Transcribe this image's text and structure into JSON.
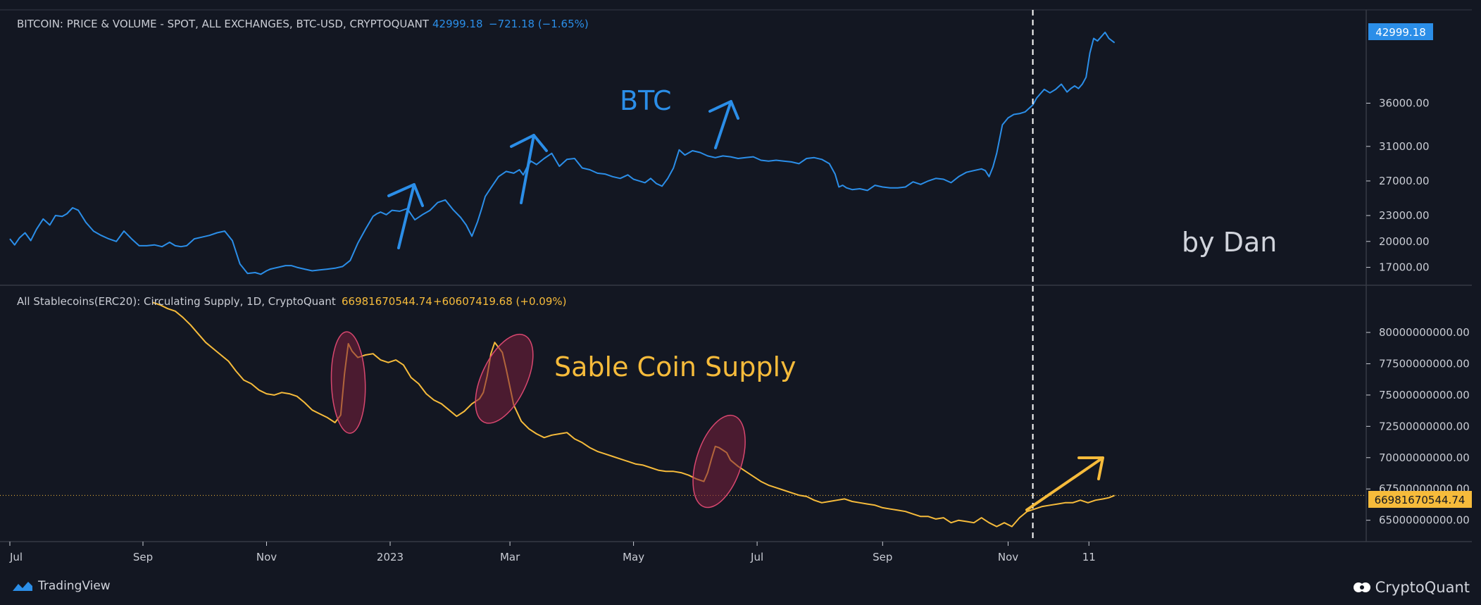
{
  "colors": {
    "background": "#131722",
    "btc": "#2b8ee8",
    "stable": "#f6bb3b",
    "highlight_fill": "#7a1f3d",
    "highlight_stroke": "#d8476f",
    "axis_text": "#c9ccd4",
    "header_text": "#c9ccd4",
    "divider": "#363a45"
  },
  "top_pane": {
    "header": {
      "title": "BITCOIN: PRICE & VOLUME - SPOT, ALL EXCHANGES, BTC-USD, CRYPTOQUANT",
      "value": "42999.18",
      "change": "−721.18 (−1.65%)"
    },
    "price_label": "42999.18",
    "annotation": "BTC",
    "watermark": "by Dan"
  },
  "bottom_pane": {
    "header": {
      "title": "All Stablecoins(ERC20): Circulating Supply, 1D, CryptoQuant",
      "value": "66981670544.74",
      "change": "+60607419.68 (+0.09%)"
    },
    "price_label": "66981670544.74",
    "annotation": "Sable Coin Supply"
  },
  "footer": {
    "left_logo": "TradingView",
    "right_logo": "CryptoQuant"
  },
  "chart_data": [
    {
      "type": "line",
      "series": [
        {
          "name": "BTC",
          "x": [
            0,
            5,
            10,
            16,
            22,
            28,
            35,
            42,
            48,
            55,
            60,
            66,
            72,
            80,
            88,
            96,
            104,
            112,
            120,
            128,
            136,
            144,
            152,
            160,
            168,
            174,
            180,
            186,
            194,
            202,
            210,
            218,
            226,
            234,
            242,
            250,
            258,
            264,
            270,
            274,
            278,
            282,
            286,
            290,
            296,
            302,
            310,
            318,
            326,
            334,
            342,
            350,
            358,
            366,
            374,
            382,
            386,
            390,
            396,
            402,
            410,
            418,
            426,
            434,
            442,
            450,
            458,
            466,
            474,
            480,
            486,
            492,
            496,
            500,
            506,
            514,
            522,
            530,
            536,
            540,
            544,
            548,
            554,
            562,
            570,
            578,
            586,
            594,
            602,
            610,
            618,
            626,
            634,
            642,
            650,
            656,
            662,
            668,
            674,
            680,
            686,
            692,
            698,
            704,
            710,
            718,
            726,
            734,
            742,
            750,
            758,
            766,
            774,
            782,
            790,
            798,
            806,
            814,
            822,
            830,
            838,
            846,
            854,
            862,
            868,
            872,
            876,
            880,
            886,
            894,
            902,
            910,
            918,
            926,
            934,
            942,
            950,
            958,
            966,
            974,
            982,
            990,
            998,
            1006,
            1014,
            1022,
            1026,
            1030,
            1034,
            1038,
            1044,
            1050,
            1056,
            1062,
            1068,
            1072,
            1076,
            1080,
            1084,
            1088,
            1094,
            1100,
            1106,
            1112,
            1116,
            1120,
            1124,
            1128,
            1132,
            1136,
            1140,
            1144,
            1148,
            1152,
            1156,
            1162
          ],
          "values": [
            20300,
            19600,
            20400,
            21000,
            20100,
            21400,
            22600,
            21900,
            23000,
            22900,
            23200,
            23900,
            23600,
            22200,
            21200,
            20700,
            20300,
            20000,
            21200,
            20300,
            19500,
            19500,
            19600,
            19400,
            19900,
            19500,
            19400,
            19500,
            20300,
            20500,
            20700,
            21000,
            21200,
            20100,
            17400,
            16300,
            16400,
            16200,
            16600,
            16800,
            16900,
            17000,
            17100,
            17200,
            17200,
            17000,
            16800,
            16600,
            16700,
            16800,
            16900,
            17100,
            17800,
            19800,
            21400,
            22900,
            23200,
            23400,
            23100,
            23600,
            23500,
            23800,
            22500,
            23100,
            23600,
            24500,
            24800,
            23700,
            22800,
            21900,
            20600,
            22300,
            23700,
            25200,
            26200,
            27500,
            28100,
            27900,
            28300,
            27700,
            28600,
            29300,
            28900,
            29600,
            30200,
            28700,
            29500,
            29600,
            28500,
            28300,
            27900,
            27800,
            27500,
            27300,
            27700,
            27200,
            27000,
            26800,
            27300,
            26700,
            26400,
            27300,
            28500,
            30600,
            30000,
            30500,
            30300,
            29900,
            29700,
            29900,
            29800,
            29600,
            29700,
            29800,
            29400,
            29300,
            29400,
            29300,
            29200,
            29000,
            29600,
            29700,
            29500,
            29000,
            27800,
            26300,
            26500,
            26200,
            26000,
            26100,
            25900,
            26500,
            26300,
            26200,
            26200,
            26300,
            26900,
            26600,
            27000,
            27300,
            27200,
            26800,
            27500,
            28000,
            28200,
            28400,
            28200,
            27500,
            28600,
            30200,
            33500,
            34300,
            34700,
            34800,
            35000,
            35400,
            35800,
            36600,
            37100,
            37600,
            37200,
            37600,
            38200,
            37300,
            37700,
            38000,
            37700,
            38200,
            39000,
            41800,
            43500,
            43200,
            43700,
            44200,
            43500,
            42999
          ]
        }
      ],
      "ylim": [
        15500,
        45500
      ],
      "yticks": [
        "17000.00",
        "20000.00",
        "23000.00",
        "27000.00",
        "31000.00",
        "36000.00"
      ]
    },
    {
      "type": "line",
      "series": [
        {
          "name": "All Stablecoins(ERC20): Circulating Supply",
          "x": [
            150,
            158,
            166,
            174,
            182,
            190,
            198,
            206,
            214,
            222,
            230,
            238,
            246,
            254,
            262,
            270,
            278,
            286,
            294,
            302,
            310,
            318,
            326,
            334,
            342,
            348,
            352,
            356,
            360,
            366,
            374,
            382,
            390,
            398,
            406,
            414,
            422,
            430,
            438,
            446,
            454,
            462,
            470,
            478,
            486,
            490,
            494,
            498,
            502,
            506,
            510,
            514,
            518,
            522,
            530,
            538,
            546,
            554,
            562,
            570,
            578,
            586,
            594,
            602,
            610,
            618,
            626,
            634,
            642,
            650,
            658,
            666,
            674,
            682,
            690,
            698,
            706,
            714,
            722,
            730,
            734,
            738,
            742,
            746,
            750,
            754,
            758,
            766,
            774,
            782,
            790,
            798,
            806,
            814,
            822,
            830,
            838,
            846,
            854,
            862,
            870,
            878,
            886,
            894,
            902,
            910,
            918,
            926,
            934,
            942,
            950,
            958,
            966,
            974,
            982,
            990,
            998,
            1006,
            1014,
            1022,
            1030,
            1038,
            1046,
            1054,
            1062,
            1070,
            1078,
            1086,
            1094,
            1102,
            1110,
            1118,
            1126,
            1134,
            1142,
            1150,
            1156,
            1162
          ],
          "values": [
            82400000000,
            82200000000,
            81900000000,
            81700000000,
            81200000000,
            80600000000,
            79900000000,
            79200000000,
            78700000000,
            78200000000,
            77700000000,
            76900000000,
            76200000000,
            75900000000,
            75400000000,
            75100000000,
            75000000000,
            75200000000,
            75100000000,
            74900000000,
            74400000000,
            73800000000,
            73500000000,
            73200000000,
            72800000000,
            73400000000,
            76700000000,
            79100000000,
            78500000000,
            78000000000,
            78200000000,
            78300000000,
            77800000000,
            77600000000,
            77800000000,
            77400000000,
            76400000000,
            75900000000,
            75100000000,
            74600000000,
            74300000000,
            73800000000,
            73300000000,
            73700000000,
            74300000000,
            74500000000,
            74700000000,
            75200000000,
            76500000000,
            78300000000,
            79200000000,
            78800000000,
            78400000000,
            77100000000,
            74200000000,
            72900000000,
            72300000000,
            71900000000,
            71600000000,
            71800000000,
            71900000000,
            72000000000,
            71500000000,
            71200000000,
            70800000000,
            70500000000,
            70300000000,
            70100000000,
            69900000000,
            69700000000,
            69500000000,
            69400000000,
            69200000000,
            69000000000,
            68900000000,
            68900000000,
            68800000000,
            68600000000,
            68300000000,
            68100000000,
            68800000000,
            69900000000,
            70900000000,
            70800000000,
            70600000000,
            70400000000,
            69800000000,
            69300000000,
            68900000000,
            68500000000,
            68100000000,
            67800000000,
            67600000000,
            67400000000,
            67200000000,
            67000000000,
            66900000000,
            66600000000,
            66400000000,
            66500000000,
            66600000000,
            66700000000,
            66500000000,
            66400000000,
            66300000000,
            66200000000,
            66000000000,
            65900000000,
            65800000000,
            65700000000,
            65500000000,
            65300000000,
            65300000000,
            65100000000,
            65200000000,
            64800000000,
            65000000000,
            64900000000,
            64800000000,
            65200000000,
            64800000000,
            64500000000,
            64800000000,
            64500000000,
            65200000000,
            65700000000,
            65900000000,
            66100000000,
            66200000000,
            66300000000,
            66400000000,
            66400000000,
            66600000000,
            66400000000,
            66600000000,
            66700000000,
            66800000000,
            66981670544.74
          ]
        }
      ],
      "ylim": [
        63800000000,
        82700000000
      ],
      "yticks": [
        "65000000000.00",
        "67500000000.00",
        "70000000000.00",
        "72500000000.00",
        "75000000000.00",
        "77500000000.00",
        "80000000000.00"
      ]
    }
  ],
  "x_axis": {
    "ticks": [
      {
        "label": "Jul",
        "x": 0
      },
      {
        "label": "Sep",
        "x": 140
      },
      {
        "label": "Nov",
        "x": 270
      },
      {
        "label": "2023",
        "x": 400
      },
      {
        "label": "Mar",
        "x": 526
      },
      {
        "label": "May",
        "x": 656
      },
      {
        "label": "Jul",
        "x": 786
      },
      {
        "label": "Sep",
        "x": 918
      },
      {
        "label": "Nov",
        "x": 1050
      },
      {
        "label": "11",
        "x": 1135
      }
    ],
    "marker_x": 1076
  }
}
